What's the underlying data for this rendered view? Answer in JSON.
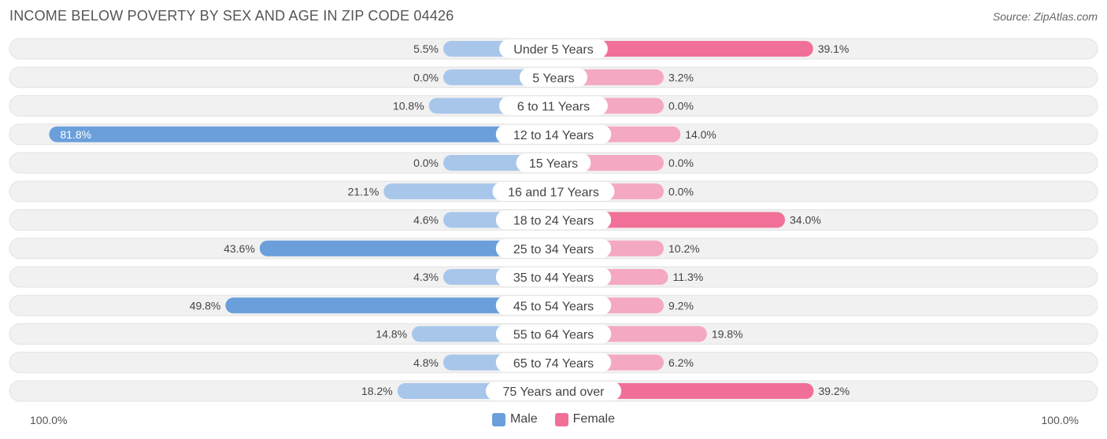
{
  "title": "INCOME BELOW POVERTY BY SEX AND AGE IN ZIP CODE 04426",
  "source": "Source: ZipAtlas.com",
  "colors": {
    "male_strong": "#6a9fdc",
    "male_light": "#a8c6ea",
    "female_strong": "#f07098",
    "female_light": "#f5a8c2",
    "track": "#f1f1f1"
  },
  "legend": {
    "male": "Male",
    "female": "Female"
  },
  "axis": {
    "left_label": "100.0%",
    "right_label": "100.0%"
  },
  "chart_data": {
    "type": "bar",
    "orientation": "horizontal-diverging",
    "categories": [
      "Under 5 Years",
      "5 Years",
      "6 to 11 Years",
      "12 to 14 Years",
      "15 Years",
      "16 and 17 Years",
      "18 to 24 Years",
      "25 to 34 Years",
      "35 to 44 Years",
      "45 to 54 Years",
      "55 to 64 Years",
      "65 to 74 Years",
      "75 Years and over"
    ],
    "series": [
      {
        "name": "Male",
        "values": [
          5.5,
          0.0,
          10.8,
          81.8,
          0.0,
          21.1,
          4.6,
          43.6,
          4.3,
          49.8,
          14.8,
          4.8,
          18.2
        ],
        "labels": [
          "5.5%",
          "0.0%",
          "10.8%",
          "81.8%",
          "0.0%",
          "21.1%",
          "4.6%",
          "43.6%",
          "4.3%",
          "49.8%",
          "14.8%",
          "4.8%",
          "18.2%"
        ]
      },
      {
        "name": "Female",
        "values": [
          39.1,
          3.2,
          0.0,
          14.0,
          0.0,
          0.0,
          34.0,
          10.2,
          11.3,
          9.2,
          19.8,
          6.2,
          39.2
        ],
        "labels": [
          "39.1%",
          "3.2%",
          "0.0%",
          "14.0%",
          "0.0%",
          "0.0%",
          "34.0%",
          "10.2%",
          "11.3%",
          "9.2%",
          "19.8%",
          "6.2%",
          "39.2%"
        ]
      }
    ],
    "xlim": [
      -100,
      100
    ],
    "legend_position": "bottom-center"
  }
}
